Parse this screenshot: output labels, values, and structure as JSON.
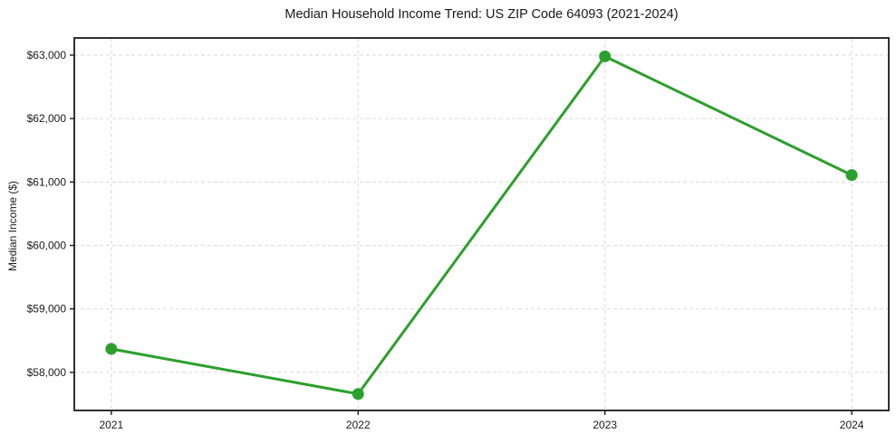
{
  "chart_data": {
    "type": "line",
    "title": "Median Household Income Trend: US ZIP Code 64093 (2021-2024)",
    "xlabel": "",
    "ylabel": "Median Income ($)",
    "x": [
      2021,
      2022,
      2023,
      2024
    ],
    "x_tick_labels": [
      "2021",
      "2022",
      "2023",
      "2024"
    ],
    "series": [
      {
        "name": "Median Household Income",
        "values": [
          58370,
          57660,
          62980,
          61110
        ],
        "color": "#2ca02c",
        "marker": "circle"
      }
    ],
    "y_ticks": [
      58000,
      59000,
      60000,
      61000,
      62000,
      63000
    ],
    "y_tick_labels": [
      "$58,000",
      "$59,000",
      "$60,000",
      "$61,000",
      "$62,000",
      "$63,000"
    ],
    "xlim": [
      2020.85,
      2024.15
    ],
    "ylim": [
      57400,
      63270
    ],
    "grid": true,
    "grid_style": "dashed",
    "grid_color": "#d9d9d9",
    "legend": "none",
    "axis_color": "#1a1a1a",
    "tick_color": "#1a1a1a",
    "text_color": "#1a1a1a",
    "background_color": "#ffffff"
  }
}
